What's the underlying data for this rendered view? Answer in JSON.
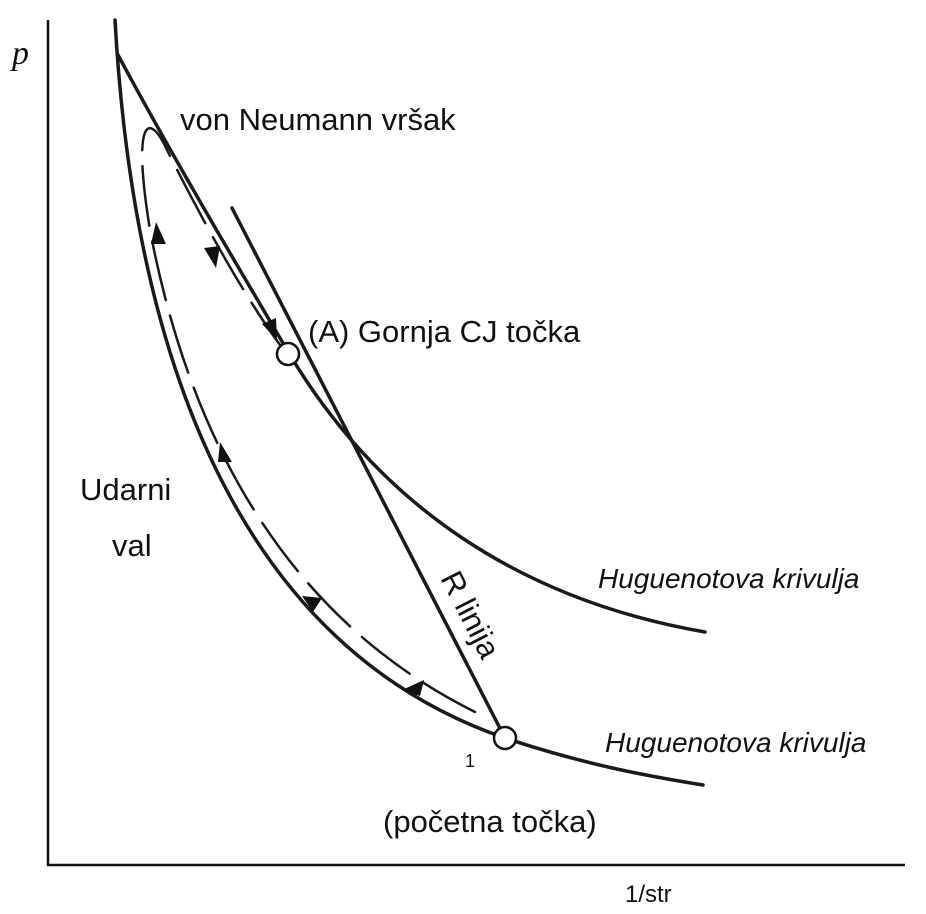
{
  "axes": {
    "y_label": "p",
    "x_label": "1/str"
  },
  "labels": {
    "von_neumann": "von Neumann vršak",
    "cj_point": "(A) Gornja CJ točka",
    "shock_wave": [
      "Udarni",
      "val"
    ],
    "hugoniot_upper": "Huguenotova krivulja",
    "hugoniot_lower": "Huguenotova krivulja",
    "rayleigh": "R linija",
    "point_number": "1",
    "initial_point": "(početna točka)"
  }
}
